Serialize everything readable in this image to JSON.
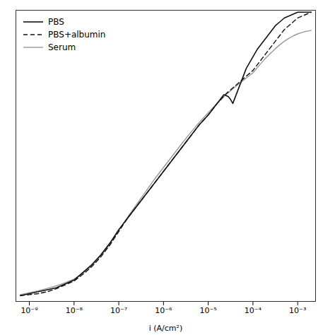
{
  "chart_data": {
    "type": "line",
    "xlabel": "i (A/cm²)",
    "log": "x",
    "xlim": [
      5.011872336e-10,
      0.002511886432
    ],
    "xticks": [
      {
        "value": 1e-09,
        "label": "10⁻⁹"
      },
      {
        "value": 1e-08,
        "label": "10⁻⁸"
      },
      {
        "value": 1e-07,
        "label": "10⁻⁷"
      },
      {
        "value": 1e-06,
        "label": "10⁻⁶"
      },
      {
        "value": 1e-05,
        "label": "10⁻⁵"
      },
      {
        "value": 0.0001,
        "label": "10⁻⁴"
      },
      {
        "value": 0.001,
        "label": "10⁻³"
      }
    ],
    "ylim": [
      -0.65,
      0.85
    ],
    "tick_labels": "x",
    "legend": "upper left",
    "series": [
      {
        "name": "PBS",
        "color": "#111111",
        "line_style": "solid",
        "x": [
          6.309573445e-10,
          1e-09,
          1.584893192e-09,
          2.511886432e-09,
          3.981071706e-09,
          6.309573445e-09,
          1e-08,
          1.584893192e-08,
          2.511886432e-08,
          3.981071706e-08,
          6.309573445e-08,
          1e-07,
          1.584893192e-07,
          2.511886432e-07,
          3.981071706e-07,
          6.309573445e-07,
          1e-06,
          1.584893192e-06,
          2.511886432e-06,
          3.981071706e-06,
          6.309573445e-06,
          1e-05,
          1.258925412e-05,
          1.584893192e-05,
          1.77827941e-05,
          1.995262315e-05,
          2.238721139e-05,
          2.511886432e-05,
          2.818382931e-05,
          3.16227766e-05,
          3.548133892e-05,
          3.981071706e-05,
          4.466835922e-05,
          5.011872336e-05,
          5.623413252e-05,
          6.309573445e-05,
          7.079457844e-05,
          7.943282347e-05,
          0.0001,
          0.0001258925412,
          0.0001584893192,
          0.0001995262315,
          0.0002511886432,
          0.000316227766,
          0.0003981071706,
          0.0005011872336,
          0.0006309573445,
          0.0007943282347,
          0.001,
          0.001258925412,
          0.001584893192,
          0.001995262315
        ],
        "values": [
          -0.62,
          -0.61,
          -0.6,
          -0.59,
          -0.58,
          -0.56,
          -0.54,
          -0.5,
          -0.46,
          -0.41,
          -0.35,
          -0.28,
          -0.22,
          -0.16,
          -0.1,
          -0.04,
          0.02,
          0.08,
          0.14,
          0.2,
          0.26,
          0.31,
          0.34,
          0.37,
          0.385,
          0.4,
          0.415,
          0.41,
          0.405,
          0.39,
          0.37,
          0.4,
          0.43,
          0.46,
          0.49,
          0.52,
          0.55,
          0.57,
          0.61,
          0.65,
          0.68,
          0.71,
          0.74,
          0.77,
          0.79,
          0.81,
          0.82,
          0.83,
          0.84,
          0.84,
          0.84,
          0.84
        ]
      },
      {
        "name": "PBS+albumin",
        "color": "#111111",
        "line_style": "dashed",
        "x": [
          6.309573445e-10,
          1e-09,
          1.584893192e-09,
          2.511886432e-09,
          3.981071706e-09,
          6.309573445e-09,
          1e-08,
          1.584893192e-08,
          2.511886432e-08,
          3.981071706e-08,
          6.309573445e-08,
          1e-07,
          1.584893192e-07,
          2.511886432e-07,
          3.981071706e-07,
          6.309573445e-07,
          1e-06,
          1.584893192e-06,
          2.511886432e-06,
          3.981071706e-06,
          6.309573445e-06,
          1e-05,
          1.584893192e-05,
          2.511886432e-05,
          3.981071706e-05,
          6.309573445e-05,
          0.0001,
          0.0001258925412,
          0.0001584893192,
          0.0001995262315,
          0.0002511886432,
          0.000316227766,
          0.0003981071706,
          0.0005011872336,
          0.0006309573445,
          0.0007943282347,
          0.001,
          0.001258925412,
          0.001584893192,
          0.001995262315
        ],
        "values": [
          -0.62,
          -0.615,
          -0.61,
          -0.6,
          -0.585,
          -0.565,
          -0.545,
          -0.51,
          -0.47,
          -0.42,
          -0.36,
          -0.29,
          -0.22,
          -0.16,
          -0.1,
          -0.04,
          0.02,
          0.08,
          0.14,
          0.2,
          0.26,
          0.31,
          0.37,
          0.42,
          0.46,
          0.5,
          0.54,
          0.57,
          0.6,
          0.63,
          0.66,
          0.69,
          0.72,
          0.75,
          0.77,
          0.79,
          0.81,
          0.82,
          0.83,
          0.84
        ]
      },
      {
        "name": "Serum",
        "color": "#999999",
        "line_style": "solid",
        "x": [
          6.309573445e-10,
          1e-09,
          1.584893192e-09,
          2.511886432e-09,
          3.981071706e-09,
          6.309573445e-09,
          1e-08,
          1.584893192e-08,
          2.511886432e-08,
          3.981071706e-08,
          6.309573445e-08,
          1e-07,
          1.584893192e-07,
          2.511886432e-07,
          3.981071706e-07,
          6.309573445e-07,
          1e-06,
          1.584893192e-06,
          2.511886432e-06,
          3.981071706e-06,
          6.309573445e-06,
          1e-05,
          1.584893192e-05,
          2.511886432e-05,
          3.981071706e-05,
          6.309573445e-05,
          0.0001,
          0.0001258925412,
          0.0001584893192,
          0.0001995262315,
          0.0002511886432,
          0.000316227766,
          0.0003981071706,
          0.0005011872336,
          0.0006309573445,
          0.0007943282347,
          0.001,
          0.001258925412,
          0.001584893192,
          0.001995262315
        ],
        "values": [
          -0.615,
          -0.605,
          -0.595,
          -0.583,
          -0.57,
          -0.554,
          -0.535,
          -0.505,
          -0.465,
          -0.415,
          -0.355,
          -0.285,
          -0.215,
          -0.15,
          -0.085,
          -0.02,
          0.04,
          0.1,
          0.16,
          0.218,
          0.272,
          0.322,
          0.37,
          0.415,
          0.455,
          0.492,
          0.528,
          0.555,
          0.582,
          0.607,
          0.63,
          0.652,
          0.672,
          0.69,
          0.705,
          0.718,
          0.728,
          0.736,
          0.742,
          0.746
        ]
      }
    ]
  }
}
